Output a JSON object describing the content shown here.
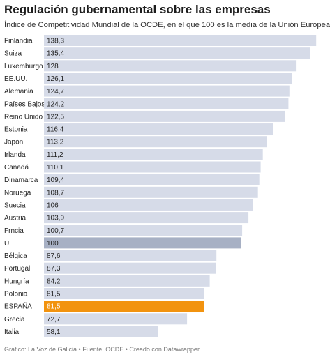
{
  "title": "Regulación gubernamental sobre las empresas",
  "subtitle": "Índice de Competitividad Mundial de la OCDE, en el que 100 es la media de la Unión Europea",
  "footer": "Gráfico: La Voz de Galicia • Fuente: OCDE • Creado con Datawrapper",
  "colors": {
    "default": "#d6dbe8",
    "eu": "#a7b0c4",
    "spain": "#f2930f"
  },
  "chart_data": {
    "type": "bar",
    "orientation": "horizontal",
    "title": "Regulación gubernamental sobre las empresas",
    "subtitle": "Índice de Competitividad Mundial de la OCDE, en el que 100 es la media de la Unión Europea",
    "xlim": [
      0,
      140
    ],
    "categories": [
      "Finlandia",
      "Suiza",
      "Luxemburgo",
      "EE.UU.",
      "Alemania",
      "Países Bajos",
      "Reino Unido",
      "Estonia",
      "Japón",
      "Irlanda",
      "Canadá",
      "Dinamarca",
      "Noruega",
      "Suecia",
      "Austria",
      "Frncia",
      "UE",
      "Bélgica",
      "Portugal",
      "Hungría",
      "Polonia",
      "ESPAÑA",
      "Grecia",
      "Italia"
    ],
    "values": [
      138.3,
      135.4,
      128,
      126.1,
      124.7,
      124.2,
      122.5,
      116.4,
      113.2,
      111.2,
      110.1,
      109.4,
      108.7,
      106,
      103.9,
      100.7,
      100,
      87.6,
      87.3,
      84.2,
      81.5,
      81.5,
      72.7,
      58.1
    ],
    "value_labels": [
      "138,3",
      "135,4",
      "128",
      "126,1",
      "124,7",
      "124,2",
      "122,5",
      "116,4",
      "113,2",
      "111,2",
      "110,1",
      "109,4",
      "108,7",
      "106",
      "103,9",
      "100,7",
      "100",
      "87,6",
      "87,3",
      "84,2",
      "81,5",
      "81,5",
      "72,7",
      "58,1"
    ],
    "highlight": {
      "UE": "eu",
      "ESPAÑA": "spain"
    }
  }
}
